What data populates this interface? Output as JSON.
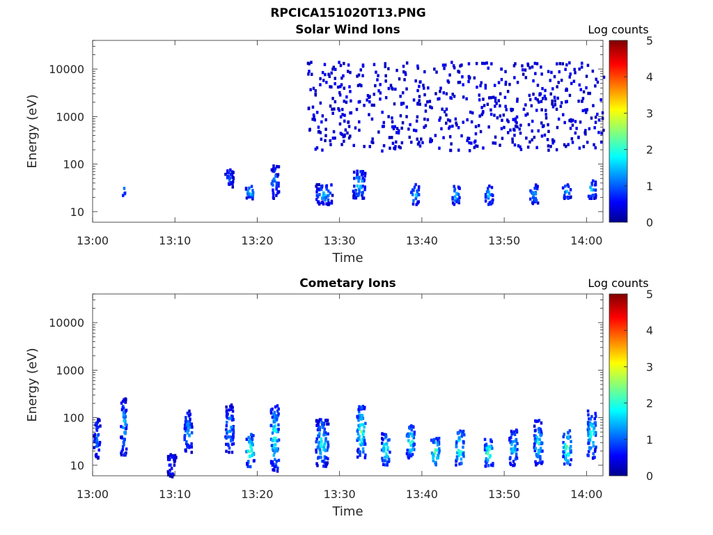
{
  "figure": {
    "title": "RPCICA151020T13.PNG"
  },
  "colormap": {
    "name": "jet",
    "stops": [
      "#00008f",
      "#0000ff",
      "#00ffff",
      "#ffff00",
      "#ff0000",
      "#800000"
    ]
  },
  "chart_data": [
    {
      "type": "heatmap",
      "title": "Solar Wind Ions",
      "xlabel": "Time",
      "ylabel": "Energy (eV)",
      "x_ticks": [
        "13:00",
        "13:10",
        "13:20",
        "13:30",
        "13:40",
        "13:50",
        "14:00"
      ],
      "x_range_minutes": [
        0,
        62
      ],
      "y_scale": "log",
      "y_ticks": [
        "10",
        "100",
        "1000",
        "10000"
      ],
      "y_range": [
        6,
        40000
      ],
      "colorbar": {
        "label": "Log counts",
        "range": [
          0,
          5
        ],
        "ticks": [
          "0",
          "1",
          "2",
          "3",
          "4",
          "5"
        ]
      },
      "grid": false,
      "regions": [
        {
          "t_minutes": [
            3.5,
            3.8
          ],
          "energy": [
            22,
            40
          ],
          "log_counts": 1.5
        },
        {
          "t_minutes": [
            16,
            17
          ],
          "energy": [
            30,
            90
          ],
          "log_counts": 1.0
        },
        {
          "t_minutes": [
            18.5,
            19.5
          ],
          "energy": [
            20,
            40
          ],
          "log_counts": 1.8
        },
        {
          "t_minutes": [
            21.5,
            22.5
          ],
          "energy": [
            20,
            100
          ],
          "log_counts": 1.2
        },
        {
          "t_minutes": [
            26,
            62
          ],
          "energy": [
            200,
            15000
          ],
          "log_counts": 0.3
        },
        {
          "t_minutes": [
            27,
            29
          ],
          "energy": [
            15,
            40
          ],
          "log_counts": 1.5
        },
        {
          "t_minutes": [
            31.5,
            33
          ],
          "energy": [
            20,
            80
          ],
          "log_counts": 1.7
        },
        {
          "t_minutes": [
            38.5,
            39.5
          ],
          "energy": [
            15,
            40
          ],
          "log_counts": 1.7
        },
        {
          "t_minutes": [
            43.5,
            44.5
          ],
          "energy": [
            15,
            40
          ],
          "log_counts": 1.8
        },
        {
          "t_minutes": [
            47.5,
            48.5
          ],
          "energy": [
            15,
            40
          ],
          "log_counts": 1.7
        },
        {
          "t_minutes": [
            53,
            54
          ],
          "energy": [
            15,
            40
          ],
          "log_counts": 1.5
        },
        {
          "t_minutes": [
            57,
            58
          ],
          "energy": [
            20,
            40
          ],
          "log_counts": 1.8
        },
        {
          "t_minutes": [
            60,
            61
          ],
          "energy": [
            20,
            50
          ],
          "log_counts": 1.7
        }
      ]
    },
    {
      "type": "heatmap",
      "title": "Cometary Ions",
      "xlabel": "Time",
      "ylabel": "Energy (eV)",
      "x_ticks": [
        "13:00",
        "13:10",
        "13:20",
        "13:30",
        "13:40",
        "13:50",
        "14:00"
      ],
      "x_range_minutes": [
        0,
        62
      ],
      "y_scale": "log",
      "y_ticks": [
        "10",
        "100",
        "1000",
        "10000"
      ],
      "y_range": [
        6,
        40000
      ],
      "colorbar": {
        "label": "Log counts",
        "range": [
          0,
          5
        ],
        "ticks": [
          "0",
          "1",
          "2",
          "3",
          "4",
          "5"
        ]
      },
      "grid": false,
      "regions": [
        {
          "t_minutes": [
            0,
            0.8
          ],
          "energy": [
            15,
            100
          ],
          "log_counts": 1.2
        },
        {
          "t_minutes": [
            3.3,
            4.0
          ],
          "energy": [
            15,
            300
          ],
          "log_counts": 1.6
        },
        {
          "t_minutes": [
            9,
            10
          ],
          "energy": [
            6,
            20
          ],
          "log_counts": 0.8
        },
        {
          "t_minutes": [
            11,
            12
          ],
          "energy": [
            20,
            150
          ],
          "log_counts": 1.5
        },
        {
          "t_minutes": [
            16,
            17
          ],
          "energy": [
            20,
            200
          ],
          "log_counts": 1.6
        },
        {
          "t_minutes": [
            18.5,
            19.5
          ],
          "energy": [
            10,
            50
          ],
          "log_counts": 2.5
        },
        {
          "t_minutes": [
            21.5,
            22.5
          ],
          "energy": [
            8,
            200
          ],
          "log_counts": 2.2
        },
        {
          "t_minutes": [
            27,
            28.5
          ],
          "energy": [
            10,
            100
          ],
          "log_counts": 2.0
        },
        {
          "t_minutes": [
            32,
            33
          ],
          "energy": [
            15,
            200
          ],
          "log_counts": 2.4
        },
        {
          "t_minutes": [
            35,
            36
          ],
          "energy": [
            10,
            50
          ],
          "log_counts": 2.3
        },
        {
          "t_minutes": [
            38,
            39
          ],
          "energy": [
            15,
            80
          ],
          "log_counts": 2.2
        },
        {
          "t_minutes": [
            41,
            42
          ],
          "energy": [
            10,
            40
          ],
          "log_counts": 2.6
        },
        {
          "t_minutes": [
            44,
            45
          ],
          "energy": [
            10,
            60
          ],
          "log_counts": 2.5
        },
        {
          "t_minutes": [
            47.5,
            48.5
          ],
          "energy": [
            10,
            40
          ],
          "log_counts": 2.4
        },
        {
          "t_minutes": [
            50.5,
            51.5
          ],
          "energy": [
            10,
            60
          ],
          "log_counts": 1.8
        },
        {
          "t_minutes": [
            53.5,
            54.5
          ],
          "energy": [
            10,
            100
          ],
          "log_counts": 2.0
        },
        {
          "t_minutes": [
            57,
            58
          ],
          "energy": [
            10,
            60
          ],
          "log_counts": 2.6
        },
        {
          "t_minutes": [
            60,
            61
          ],
          "energy": [
            15,
            150
          ],
          "log_counts": 2.3
        }
      ]
    }
  ]
}
